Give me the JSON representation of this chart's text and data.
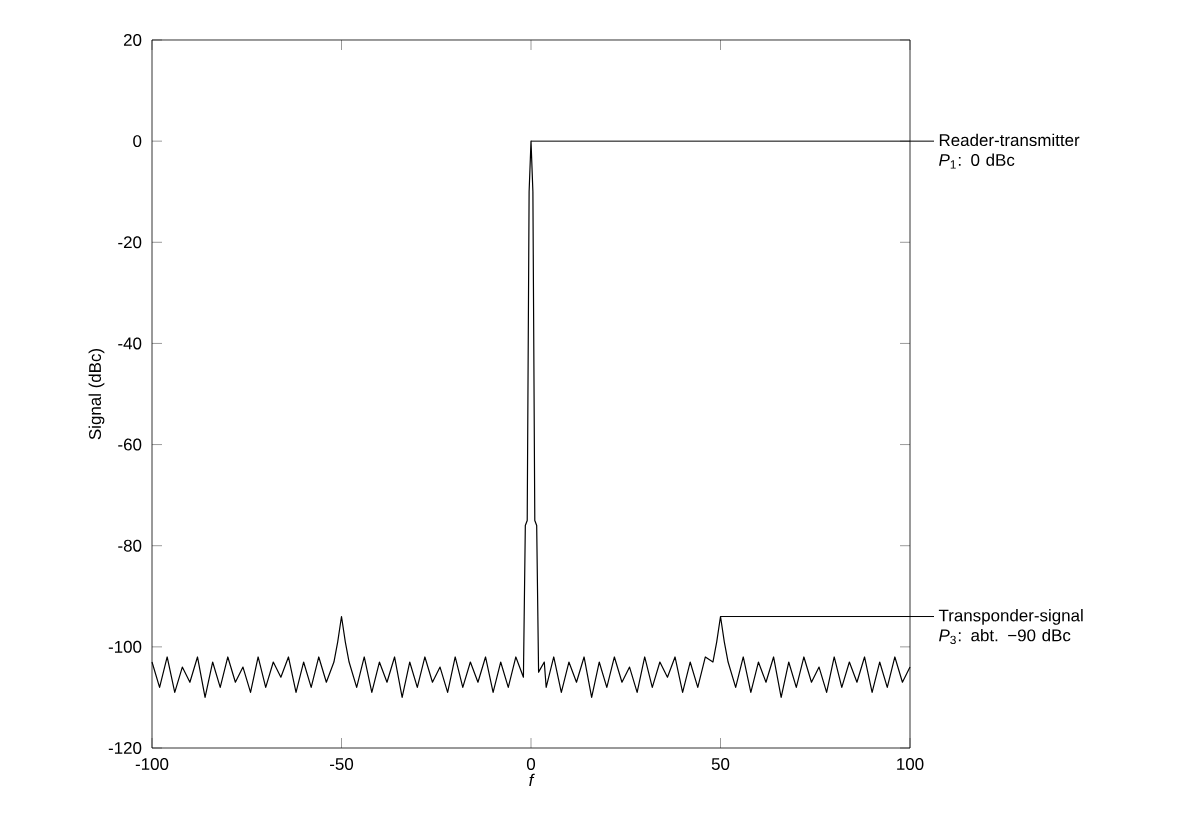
{
  "chart_data": {
    "type": "line",
    "xlabel": "f",
    "ylabel": "Signal (dBc)",
    "xlim": [
      -100,
      100
    ],
    "ylim": [
      -120,
      20
    ],
    "xticks": [
      -100,
      -50,
      0,
      50,
      100
    ],
    "yticks": [
      -120,
      -100,
      -80,
      -60,
      -40,
      -20,
      0,
      20
    ],
    "color": "#000000",
    "x": [
      -100,
      -98,
      -96,
      -94,
      -92,
      -90,
      -88,
      -86,
      -84,
      -82,
      -80,
      -78,
      -76,
      -74,
      -72,
      -70,
      -68,
      -66,
      -64,
      -62,
      -60,
      -58,
      -56,
      -54,
      -52,
      -51,
      -50,
      -49,
      -48,
      -46,
      -44,
      -42,
      -40,
      -38,
      -36,
      -34,
      -32,
      -30,
      -28,
      -26,
      -24,
      -22,
      -20,
      -18,
      -16,
      -14,
      -12,
      -10,
      -8,
      -6,
      -4,
      -2,
      -1.5,
      -1,
      -0.5,
      0,
      0.5,
      1,
      1.5,
      2,
      3.5,
      4,
      6,
      8,
      10,
      12,
      14,
      16,
      18,
      20,
      22,
      24,
      26,
      28,
      30,
      32,
      34,
      36,
      38,
      40,
      42,
      44,
      46,
      48,
      49,
      50,
      51,
      52,
      54,
      56,
      58,
      60,
      62,
      64,
      66,
      68,
      70,
      72,
      74,
      76,
      78,
      80,
      82,
      84,
      86,
      88,
      90,
      92,
      94,
      96,
      98,
      100
    ],
    "values": [
      -103,
      -108,
      -102,
      -109,
      -104,
      -107,
      -102,
      -110,
      -103,
      -108,
      -102,
      -107,
      -104,
      -109,
      -102,
      -108,
      -103,
      -106,
      -102,
      -109,
      -103,
      -108,
      -102,
      -107,
      -103,
      -99,
      -94,
      -99,
      -103,
      -108,
      -102,
      -109,
      -103,
      -107,
      -102,
      -110,
      -103,
      -108,
      -102,
      -107,
      -104,
      -109,
      -102,
      -108,
      -103,
      -107,
      -102,
      -109,
      -103,
      -108,
      -102,
      -106,
      -76,
      -75,
      -10,
      0,
      -10,
      -75,
      -76,
      -105,
      -103,
      -108,
      -102,
      -109,
      -103,
      -107,
      -102,
      -110,
      -103,
      -108,
      -102,
      -107,
      -104,
      -109,
      -102,
      -108,
      -103,
      -106,
      -102,
      -109,
      -103,
      -108,
      -102,
      -103,
      -99,
      -94,
      -99,
      -103,
      -108,
      -102,
      -109,
      -103,
      -107,
      -102,
      -110,
      -103,
      -108,
      -102,
      -107,
      -104,
      -109,
      -102,
      -108,
      -103,
      -107,
      -102,
      -109,
      -103,
      -108,
      -102,
      -107,
      -104
    ],
    "annotations": [
      {
        "text": "Reader-transmitter *P*$_{1}$: 0 dBc",
        "x": 0,
        "y": 0
      },
      {
        "text": "Transponder-signal *P*$_{3}$: abt. −90 dBc",
        "x": 50,
        "y": -94
      }
    ]
  }
}
